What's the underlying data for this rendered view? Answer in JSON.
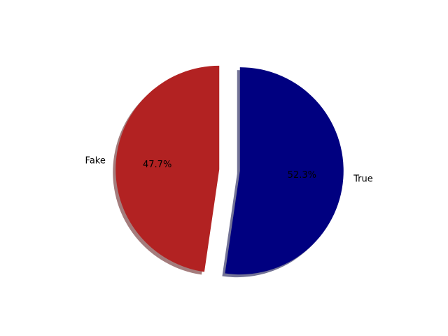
{
  "chart_data": {
    "type": "pie",
    "categories": [
      "Fake",
      "True"
    ],
    "values": [
      47.7,
      52.3
    ],
    "percent_labels": [
      "47.7%",
      "52.3%"
    ],
    "colors": [
      "#b22222",
      "#000080"
    ],
    "explode": [
      0.1,
      0.1
    ],
    "start_angle_deg": 90,
    "shadow": true,
    "title": "",
    "legend": "none"
  }
}
